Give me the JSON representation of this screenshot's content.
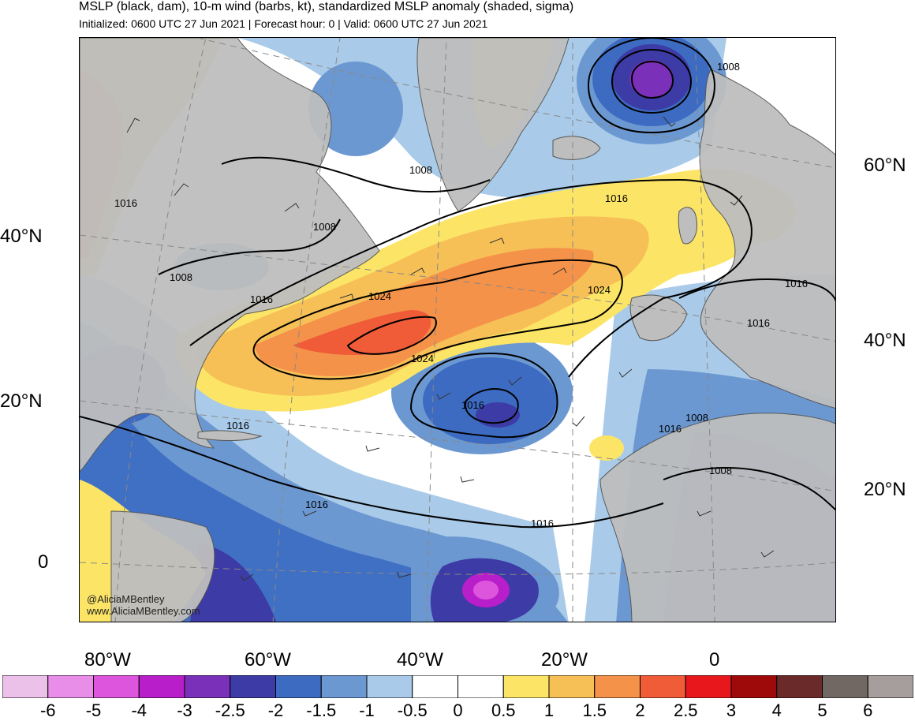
{
  "header": {
    "title": "MSLP (black, dam), 10-m wind (barbs, kt), standardized MSLP anomaly (shaded, sigma)",
    "subtitle": "Initialized: 0600 UTC 27 Jun 2021 | Forecast hour: 0 | Valid: 0600 UTC 27 Jun 2021"
  },
  "map": {
    "lat_labels_left": [
      "40°N",
      "20°N",
      "0"
    ],
    "lat_labels_right": [
      "60°N",
      "40°N",
      "20°N"
    ],
    "lon_labels_bottom": [
      "80°W",
      "60°W",
      "40°W",
      "20°W",
      "0"
    ],
    "contour_labels": [
      "1008",
      "1016",
      "1008",
      "1008",
      "1008",
      "1016",
      "1008",
      "1016",
      "1024",
      "1024",
      "1024",
      "1016",
      "1016",
      "1016",
      "1016",
      "1016",
      "1016",
      "1016",
      "1008"
    ],
    "credit": [
      "@AliciaMBentley",
      "www.AliciaMBentley.com"
    ]
  },
  "colorbar": {
    "labels": [
      "-6",
      "-5",
      "-4",
      "-3",
      "-2.5",
      "-2",
      "-1.5",
      "-1",
      "-0.5",
      "0",
      "0.5",
      "1",
      "1.5",
      "2",
      "2.5",
      "3",
      "4",
      "5",
      "6"
    ],
    "colors": [
      "#ebc1ea",
      "#e88ee8",
      "#dd55dd",
      "#b81ec9",
      "#7a30b8",
      "#3d3ba6",
      "#3c6bc1",
      "#6c98d2",
      "#a9cbe9",
      "#ffffff",
      "#ffffff",
      "#fce566",
      "#f6c057",
      "#f5924a",
      "#f05c38",
      "#e8171c",
      "#9e0a0a",
      "#6b2a2a",
      "#716864",
      "#a69e9d"
    ]
  },
  "colors": {
    "land": "#bebebe",
    "contour": "#000000",
    "grid": "#888888"
  }
}
